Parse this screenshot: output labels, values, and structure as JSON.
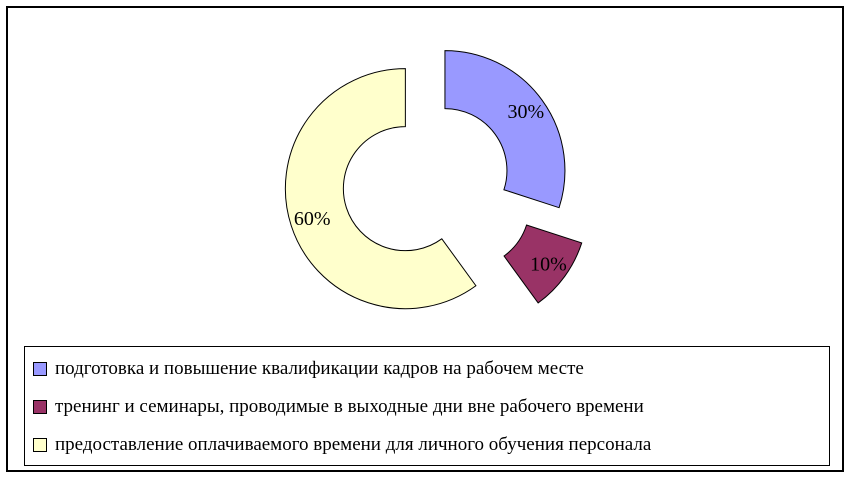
{
  "chart_data": {
    "type": "pie",
    "variant": "exploded-doughnut",
    "title": "",
    "slices": [
      {
        "label": "подготовка и повышение квалификации кадров на рабочем месте",
        "value": 30,
        "data_label": "30%",
        "color": "#9999ff"
      },
      {
        "label": "тренинг и семинары, проводимые в выходные дни вне рабочего времени",
        "value": 10,
        "data_label": "10%",
        "color": "#993366"
      },
      {
        "label": "предоставление оплачиваемого времени для личного обучения персонала",
        "value": 60,
        "data_label": "60%",
        "color": "#ffffcc"
      }
    ],
    "legend_placement": "bottom"
  }
}
